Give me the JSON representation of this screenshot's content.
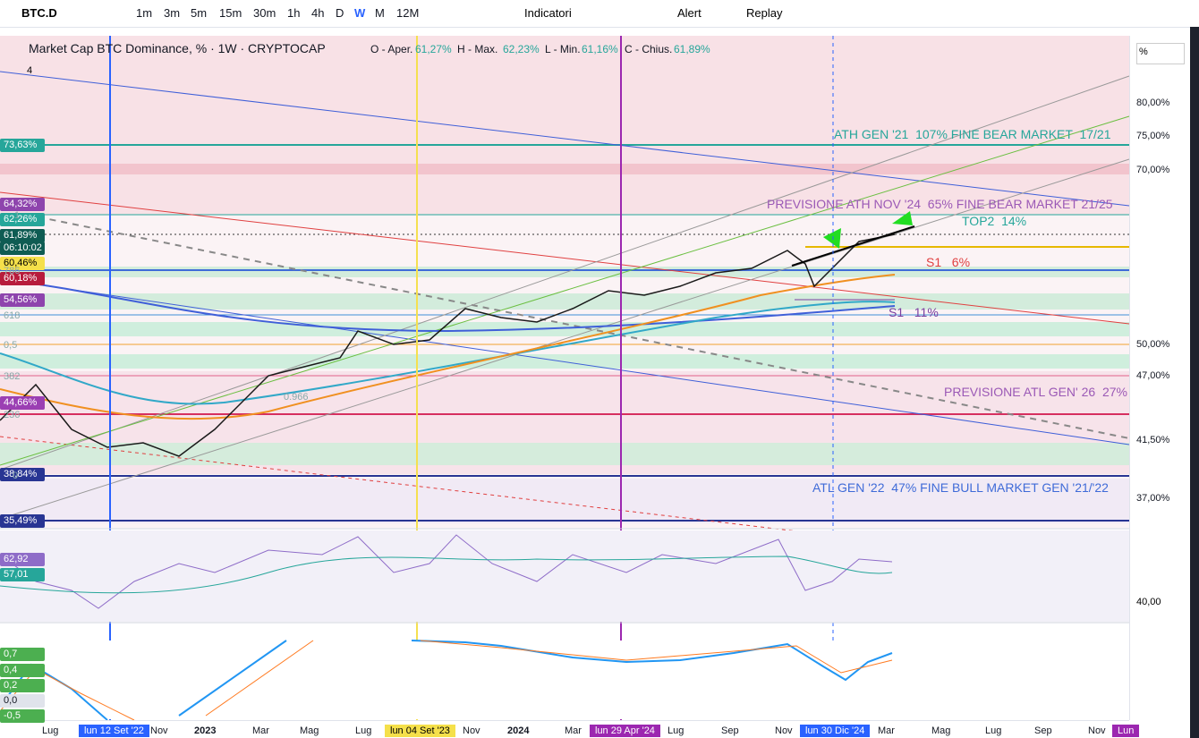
{
  "toolbar": {
    "symbol": "BTC.D",
    "intervals": [
      "1m",
      "3m",
      "5m",
      "15m",
      "30m",
      "1h",
      "4h",
      "D",
      "W",
      "M",
      "12M"
    ],
    "indicators": "Indicatori",
    "alert": "Alert",
    "replay": "Replay"
  },
  "legend": {
    "title": "Market Cap BTC Dominance, % · 1W · CRYPTOCAP",
    "ohlc": [
      {
        "label": "O - Aper.",
        "value": "61,27%"
      },
      {
        "label": "H - Max.",
        "value": "62,23%"
      },
      {
        "label": "L - Min.",
        "value": "61,16%"
      },
      {
        "label": "C - Chius.",
        "value": "61,89%"
      }
    ],
    "pane_count": "4",
    "scale_mode": "%"
  },
  "price_axis": [
    "80,00%",
    "75,00%",
    "70,00%",
    "50,00%",
    "47,00%",
    "41,50%",
    "37,00%"
  ],
  "price_badges": [
    "73,63%",
    "64,32%",
    "62,26%",
    "61,89%",
    "06:10:02",
    "60,46%",
    "60,18%",
    "54,56%",
    "44,66%",
    "38,84%",
    "35,49%"
  ],
  "annotations": [
    "ATH GEN '21  107% FINE BEAR MARKET  17/21",
    "PREVISIONE ATH NOV '24  65% FINE BEAR MARKET 21/25",
    "TOP2  14%",
    "S1   6%",
    "S1   11%",
    "PREVISIONE ATL GEN' 26  27%",
    "ATL GEN '22  47% FINE BULL MARKET GEN '21/'22"
  ],
  "fib_labels": [
    "1",
    "786",
    "618",
    "0,5",
    "382",
    "236",
    "0",
    "0.966"
  ],
  "rsi_axis": [
    "62,92",
    "57,01",
    "40,00"
  ],
  "macd_axis": [
    "0,7",
    "0,4",
    "0,2",
    "0,0",
    "-0,5"
  ],
  "time_axis": [
    "Lug",
    "lun 12 Set '22",
    "Nov",
    "2023",
    "Mar",
    "Mag",
    "Lug",
    "lun 04 Set '23",
    "Nov",
    "2024",
    "Mar",
    "lun 29 Apr '24",
    "Lug",
    "Sep",
    "Nov",
    "lun 30 Dic '24",
    "Mar",
    "Mag",
    "Lug",
    "Sep",
    "Nov",
    "Lun"
  ]
}
